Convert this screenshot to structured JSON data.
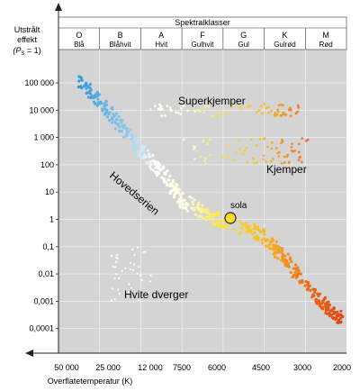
{
  "chart_data": {
    "type": "scatter",
    "title": "",
    "header": {
      "title": "Spektralklasser",
      "classes": [
        {
          "letter": "O",
          "color": "Blå"
        },
        {
          "letter": "B",
          "color": "Blåhvit"
        },
        {
          "letter": "A",
          "color": "Hvit"
        },
        {
          "letter": "F",
          "color": "Gulhvit"
        },
        {
          "letter": "G",
          "color": "Gul"
        },
        {
          "letter": "K",
          "color": "Gulrød"
        },
        {
          "letter": "M",
          "color": "Rød"
        }
      ]
    },
    "ylabel": {
      "line1": "Utstrålt",
      "line2": "effekt",
      "line3_pre": "(P",
      "line3_sub": "S",
      "line3_post": " = 1)"
    },
    "xlabel": "Overflatetemperatur (K)",
    "y_ticks": [
      "100 000",
      "10 000",
      "1 000",
      "100",
      "10",
      "1",
      "0,1",
      "0,01",
      "0,001",
      "0,0001"
    ],
    "x_ticks": [
      "50 000",
      "25 000",
      "12 000",
      "7500",
      "6000",
      "4500",
      "3000",
      "2000"
    ],
    "x_scale": "temperature, decreasing to the right",
    "y_scale": "log",
    "grid": true,
    "annotations": {
      "supergiants": "Superkjemper",
      "giants": "Kjemper",
      "main_sequence": "Hovedserien",
      "sun": "sola",
      "white_dwarfs": "Hvite dverger"
    },
    "groups": {
      "main_sequence": {
        "approx_points": [
          [
            40000,
            100000
          ],
          [
            25000,
            10000
          ],
          [
            15000,
            500
          ],
          [
            10000,
            50
          ],
          [
            7500,
            5
          ],
          [
            6000,
            1
          ],
          [
            4500,
            0.3
          ],
          [
            3500,
            0.03
          ],
          [
            2500,
            0.001
          ],
          [
            2000,
            0.0002
          ]
        ]
      },
      "supergiants": {
        "approx_range_K": [
          12000,
          3000
        ],
        "approx_luminosity": 10000
      },
      "giants": {
        "approx_range_K": [
          7500,
          2800
        ],
        "approx_luminosity": [
          100,
          1000
        ]
      },
      "white_dwarfs": {
        "approx_range_K": [
          25000,
          12000
        ],
        "approx_luminosity": [
          0.001,
          0.1
        ]
      },
      "sun": {
        "temperature_K": 5800,
        "luminosity": 1
      }
    },
    "colors": {
      "background": "#d4d4d4",
      "blue": "#3ba0dc",
      "white": "#ffffff",
      "yellow": "#f7e118",
      "orange": "#f08a1e",
      "red": "#e34c12"
    }
  }
}
